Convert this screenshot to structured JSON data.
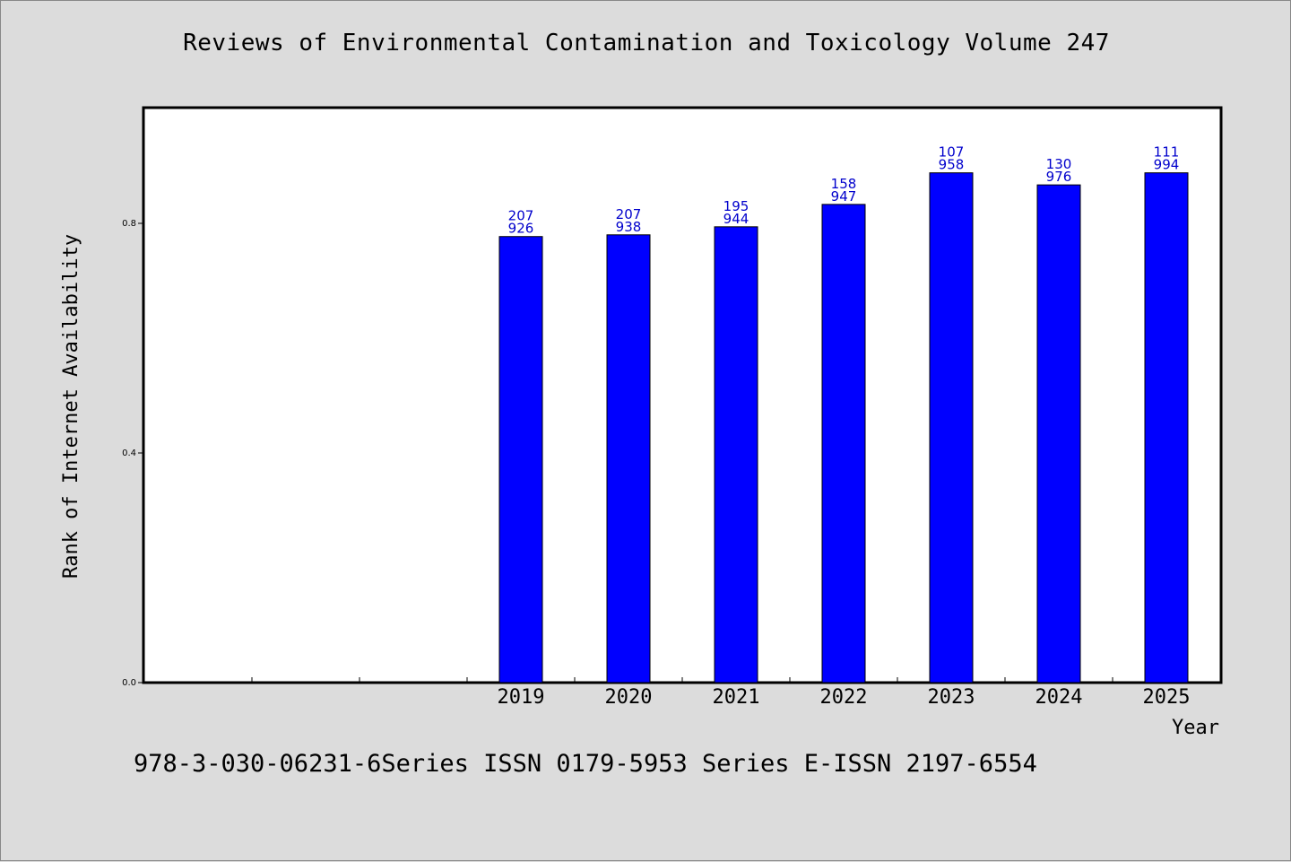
{
  "footer_text": "978-3-030-06231-6Series ISSN 0179-5953 Series E-ISSN 2197-6554",
  "chart_data": {
    "type": "bar",
    "title": "Reviews of Environmental Contamination and Toxicology Volume 247",
    "xlabel": "Year",
    "ylabel": "Rank of Internet Availability",
    "ylim": [
      0,
      1.0
    ],
    "yticks": [
      "0.0",
      "0.4",
      "0.8"
    ],
    "categories": [
      "2019",
      "2020",
      "2021",
      "2022",
      "2023",
      "2024",
      "2025"
    ],
    "values": [
      0.777,
      0.78,
      0.794,
      0.833,
      0.888,
      0.867,
      0.888
    ],
    "data_labels": [
      [
        "207",
        "926"
      ],
      [
        "207",
        "938"
      ],
      [
        "195",
        "944"
      ],
      [
        "158",
        "947"
      ],
      [
        "107",
        "958"
      ],
      [
        "130",
        "976"
      ],
      [
        "111",
        "994"
      ]
    ],
    "bar_color": "#0000ff",
    "label_color": "#0000cc",
    "grid": false,
    "legend": "none"
  }
}
